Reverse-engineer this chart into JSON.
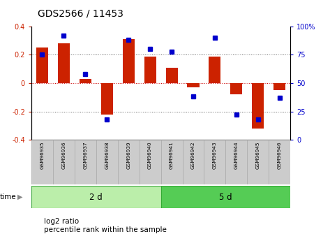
{
  "title": "GDS2566 / 11453",
  "samples": [
    "GSM96935",
    "GSM96936",
    "GSM96937",
    "GSM96938",
    "GSM96939",
    "GSM96940",
    "GSM96941",
    "GSM96942",
    "GSM96943",
    "GSM96944",
    "GSM96945",
    "GSM96946"
  ],
  "log2_ratio": [
    0.25,
    0.28,
    0.03,
    -0.22,
    0.31,
    0.19,
    0.11,
    -0.03,
    0.19,
    -0.08,
    -0.32,
    -0.05
  ],
  "percentile_rank": [
    75,
    92,
    58,
    18,
    88,
    80,
    78,
    38,
    90,
    22,
    18,
    37
  ],
  "group1_label": "2 d",
  "group2_label": "5 d",
  "group1_count": 6,
  "group2_count": 6,
  "bar_color": "#cc2200",
  "dot_color": "#0000cc",
  "ylim_left": [
    -0.4,
    0.4
  ],
  "ylim_right": [
    0,
    100
  ],
  "yticks_left": [
    -0.4,
    -0.2,
    0.0,
    0.2,
    0.4
  ],
  "yticks_right": [
    0,
    25,
    50,
    75,
    100
  ],
  "hlines": [
    -0.2,
    0.0,
    0.2
  ],
  "legend_labels": [
    "log2 ratio",
    "percentile rank within the sample"
  ],
  "bg_color": "#ffffff",
  "group1_bg": "#bbeeaa",
  "group2_bg": "#55cc55",
  "sample_bg": "#cccccc",
  "bar_width": 0.55
}
